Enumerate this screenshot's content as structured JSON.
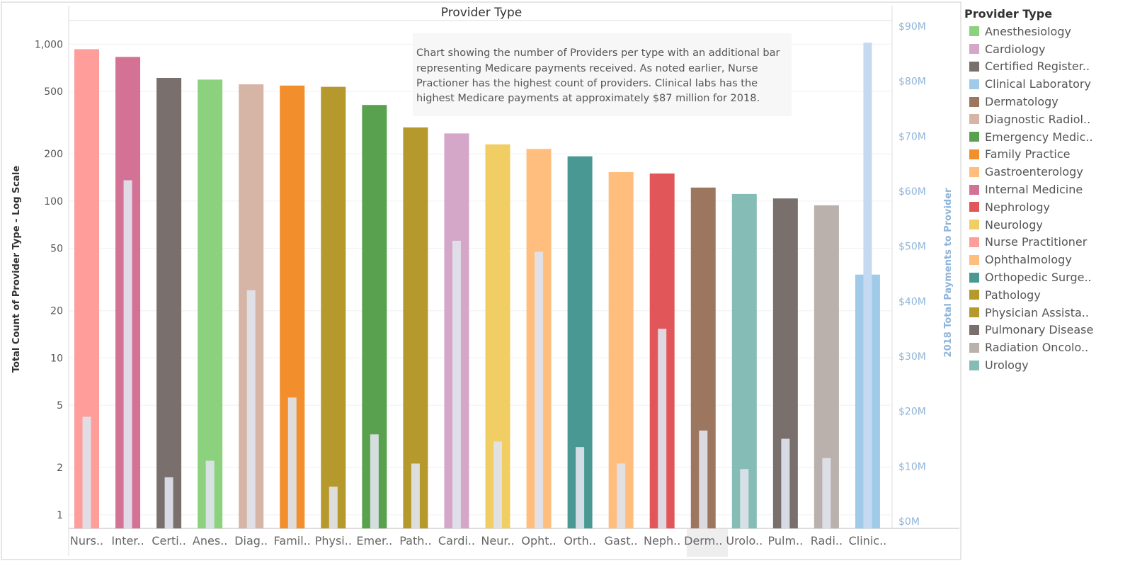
{
  "chart_data": {
    "type": "bar",
    "title": "Provider Type",
    "categories": [
      "Nurs..",
      "Inter..",
      "Certi..",
      "Anes..",
      "Diag..",
      "Famil..",
      "Physi..",
      "Emer..",
      "Path..",
      "Cardi..",
      "Neur..",
      "Opht..",
      "Orth..",
      "Gast..",
      "Neph..",
      "Derm..",
      "Urolo..",
      "Pulm..",
      "Radi..",
      "Clinic.."
    ],
    "full_names": [
      "Nurse Practitioner",
      "Internal Medicine",
      "Certified Register..",
      "Anesthesiology",
      "Diagnostic Radiol..",
      "Family Practice",
      "Physician Assista..",
      "Emergency Medic..",
      "Pathology",
      "Cardiology",
      "Neurology",
      "Ophthalmology",
      "Orthopedic Surge..",
      "Gastroenterology",
      "Nephrology",
      "Dermatology",
      "Urology",
      "Pulmonary Disease",
      "Radiation Oncolo..",
      "Clinical Laboratory"
    ],
    "colors": [
      "#ff9d9a",
      "#d37295",
      "#79706e",
      "#8cd17d",
      "#d7b5a6",
      "#f28e2b",
      "#b6992d",
      "#59a14f",
      "#b6992d",
      "#d4a6c8",
      "#f1ce63",
      "#ffbe7d",
      "#499894",
      "#ffbe7d",
      "#e15759",
      "#9d7660",
      "#86bcb6",
      "#79706e",
      "#bab0ac",
      "#a0cbe8"
    ],
    "series": [
      {
        "name": "Total Count of Provider Type - Log Scale",
        "axis": "left",
        "values": [
          930,
          830,
          610,
          595,
          555,
          545,
          535,
          410,
          295,
          270,
          230,
          215,
          193,
          153,
          150,
          122,
          111,
          104,
          94,
          34
        ]
      },
      {
        "name": "2018 Total Payments to Provider",
        "axis": "right",
        "values": [
          19,
          62,
          8,
          11,
          42,
          22.5,
          6.3,
          15.8,
          10.5,
          51,
          14.5,
          49,
          13.5,
          10.5,
          35,
          16.5,
          9.5,
          15,
          11.5,
          87
        ]
      }
    ],
    "ylabel": "Total Count of Provider Type - Log Scale",
    "y2label": "2018 Total Payments to Provider",
    "yscale": "log",
    "ylim": [
      0.82,
      1330
    ],
    "y_ticks": [
      "1,000",
      "500",
      "200",
      "100",
      "50",
      "20",
      "10",
      "5",
      "2",
      "1"
    ],
    "y2lim": [
      0,
      90
    ],
    "y2_ticks": [
      "$90M",
      "$80M",
      "$70M",
      "$60M",
      "$50M",
      "$40M",
      "$30M",
      "$20M",
      "$10M",
      "$0M"
    ],
    "grid": true,
    "legend": "right",
    "highlighted_category": "Derm.."
  },
  "annotation": {
    "lines": [
      "Chart showing the number of Providers per type with an additional bar",
      "representing Medicare payments received.  As noted earlier, Nurse",
      "Practioner has the highest count of providers.  Clinical labs has the",
      "highest Medicare payments at approximately $87 million for 2018."
    ]
  },
  "legend": {
    "title": "Provider Type",
    "items": [
      {
        "label": "Anesthesiology",
        "color": "#8cd17d"
      },
      {
        "label": "Cardiology",
        "color": "#d4a6c8"
      },
      {
        "label": "Certified Register..",
        "color": "#79706e"
      },
      {
        "label": "Clinical Laboratory",
        "color": "#a0cbe8"
      },
      {
        "label": "Dermatology",
        "color": "#9d7660"
      },
      {
        "label": "Diagnostic Radiol..",
        "color": "#d7b5a6"
      },
      {
        "label": "Emergency Medic..",
        "color": "#59a14f"
      },
      {
        "label": "Family Practice",
        "color": "#f28e2b"
      },
      {
        "label": "Gastroenterology",
        "color": "#ffbe7d"
      },
      {
        "label": "Internal Medicine",
        "color": "#d37295"
      },
      {
        "label": "Nephrology",
        "color": "#e15759"
      },
      {
        "label": "Neurology",
        "color": "#f1ce63"
      },
      {
        "label": "Nurse Practitioner",
        "color": "#ff9d9a"
      },
      {
        "label": "Ophthalmology",
        "color": "#ffbe7d"
      },
      {
        "label": "Orthopedic Surge..",
        "color": "#499894"
      },
      {
        "label": "Pathology",
        "color": "#b6992d"
      },
      {
        "label": "Physician Assista..",
        "color": "#b6992d"
      },
      {
        "label": "Pulmonary Disease",
        "color": "#79706e"
      },
      {
        "label": "Radiation Oncolo..",
        "color": "#bab0ac"
      },
      {
        "label": "Urology",
        "color": "#86bcb6"
      }
    ]
  }
}
